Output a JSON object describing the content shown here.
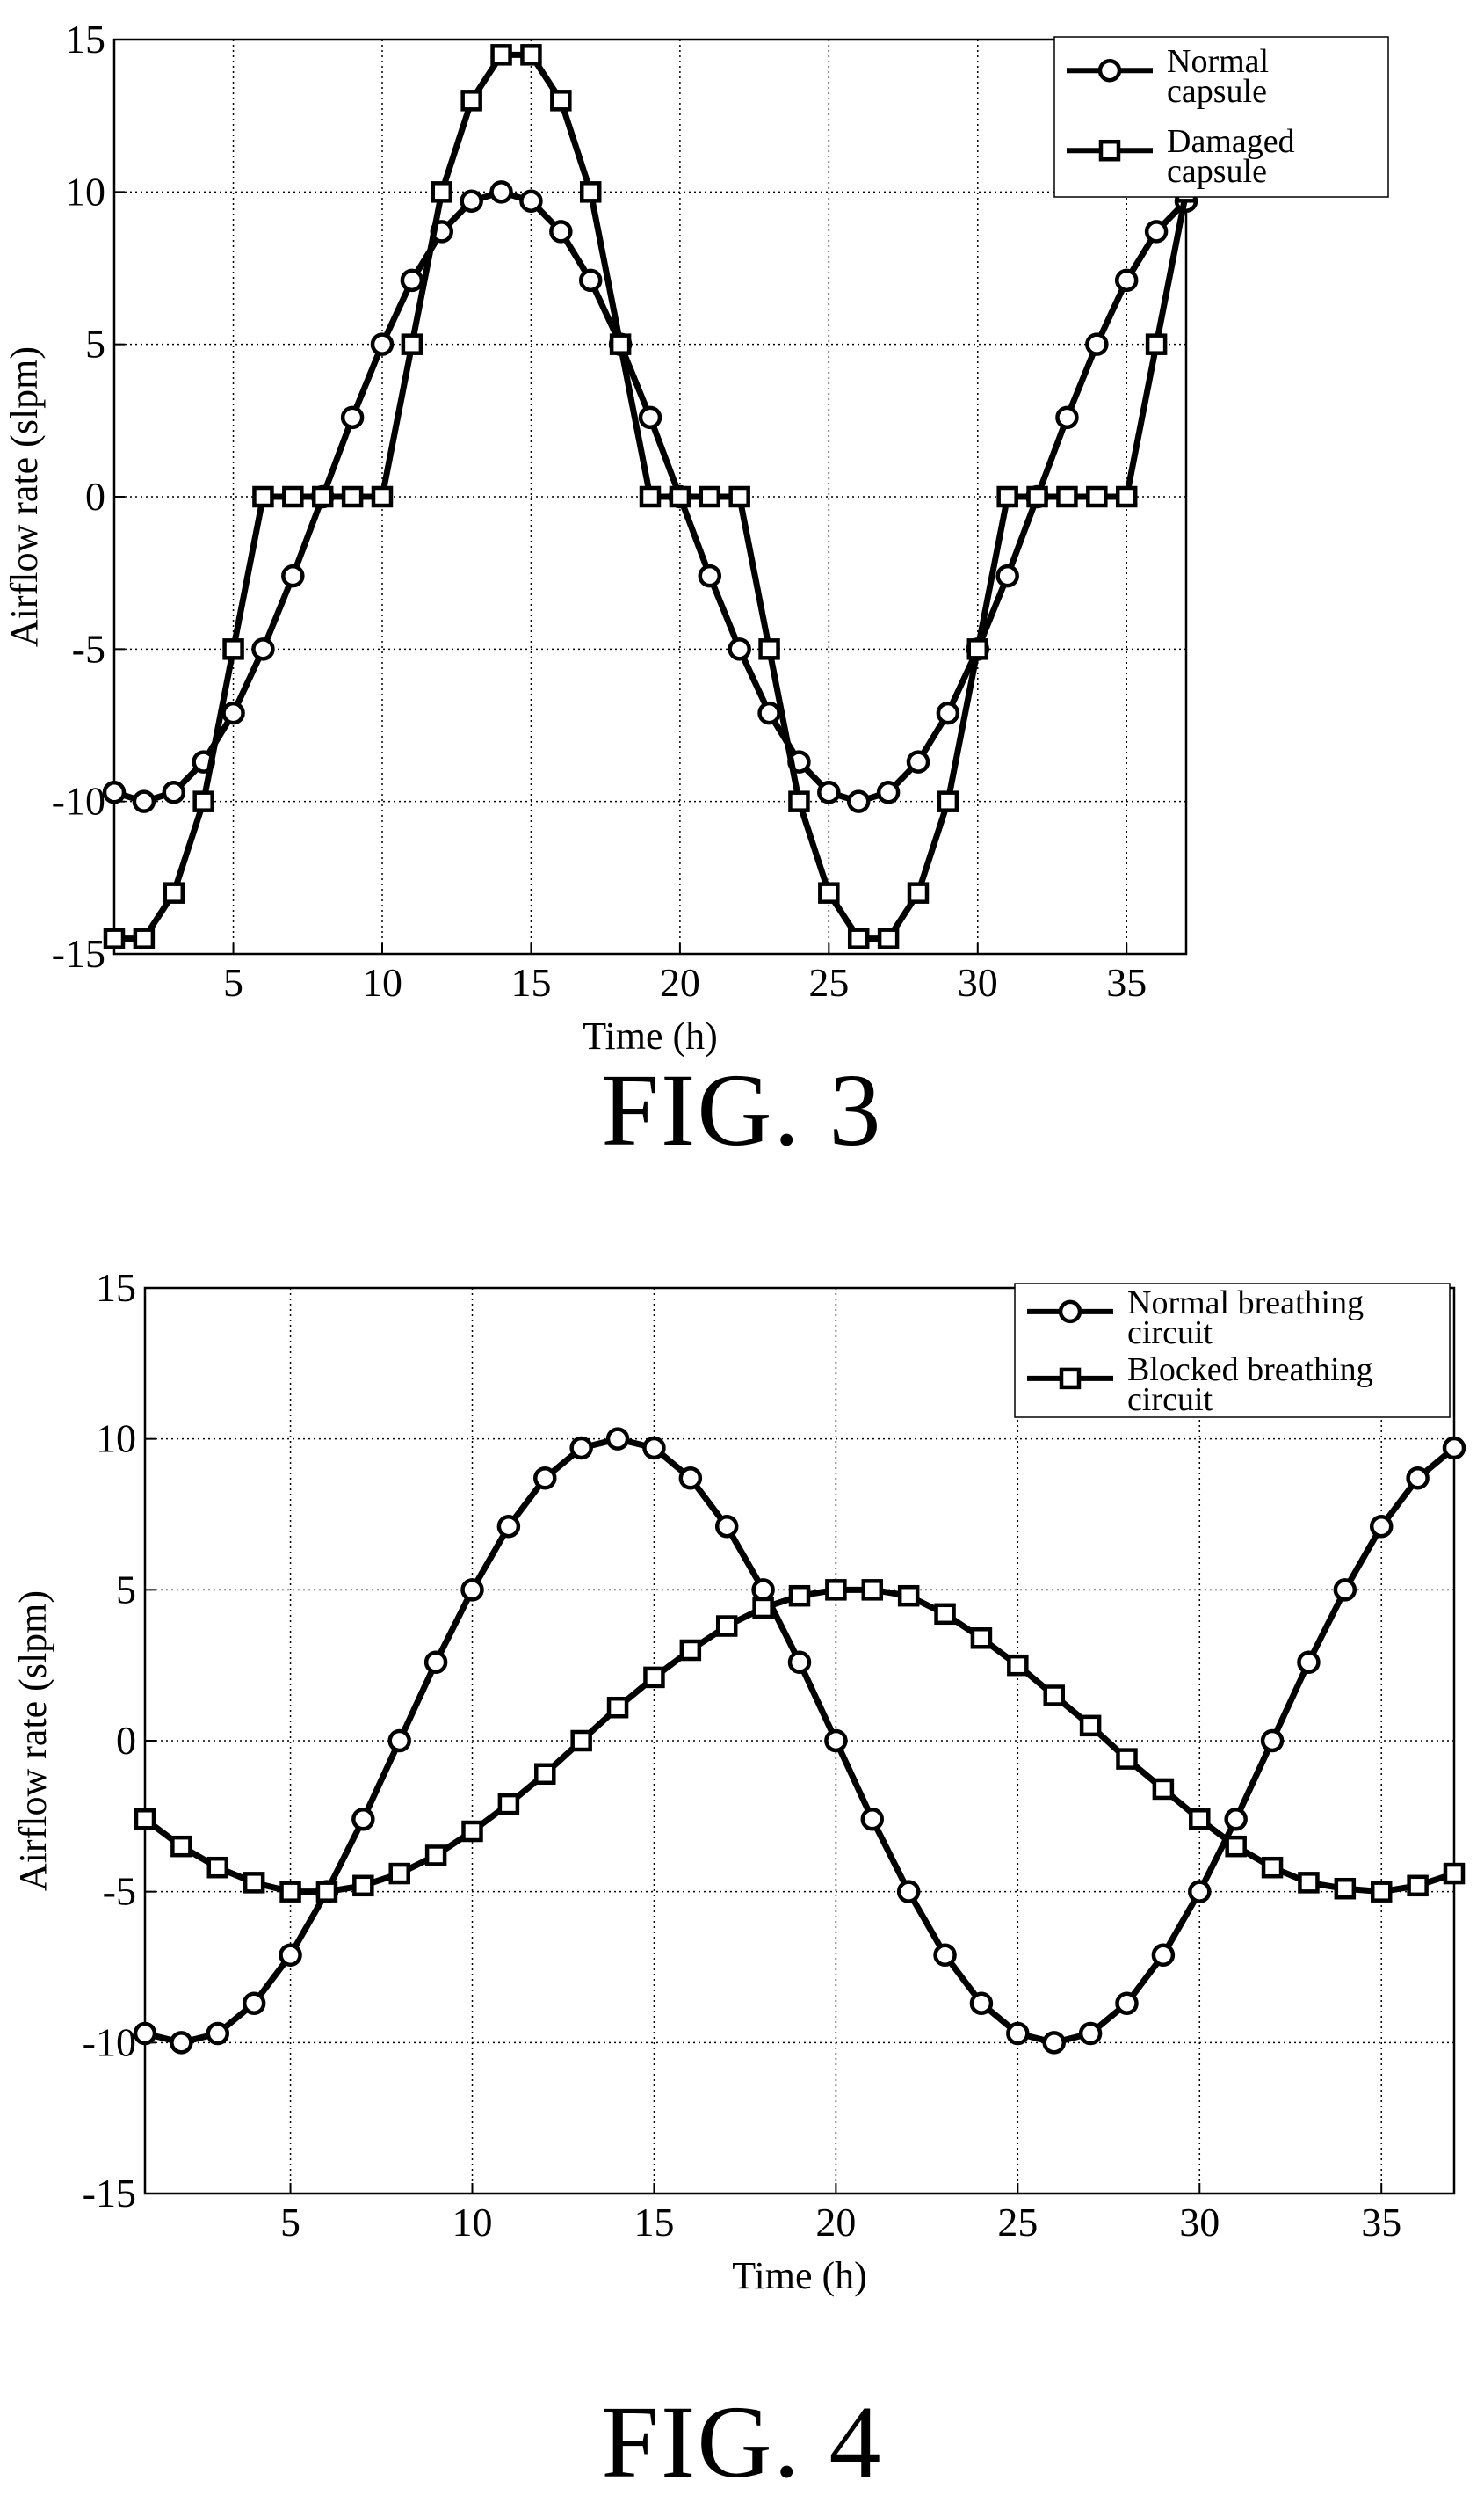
{
  "figures": [
    {
      "caption": "FIG. 3",
      "chart_data": {
        "type": "line",
        "title": "",
        "xlabel": "Time (h)",
        "ylabel": "Airflow rate (slpm)",
        "xlim": [
          1,
          37
        ],
        "ylim": [
          -15,
          15
        ],
        "xticks": [
          5,
          10,
          15,
          20,
          25,
          30,
          35
        ],
        "yticks": [
          15,
          10,
          5,
          0,
          -5,
          -10,
          -15
        ],
        "grid": true,
        "legend_position": "top-right",
        "x": [
          1,
          2,
          3,
          4,
          5,
          6,
          7,
          8,
          9,
          10,
          11,
          12,
          13,
          14,
          15,
          16,
          17,
          18,
          19,
          20,
          21,
          22,
          23,
          24,
          25,
          26,
          27,
          28,
          29,
          30,
          31,
          32,
          33,
          34,
          35,
          36,
          37
        ],
        "series": [
          {
            "name": "Normal capsule",
            "marker": "circle",
            "values": [
              -9.7,
              -10,
              -9.7,
              -8.7,
              -7.1,
              -5,
              -2.6,
              0,
              2.6,
              5,
              7.1,
              8.7,
              9.7,
              10,
              9.7,
              8.7,
              7.1,
              5,
              2.6,
              0,
              -2.6,
              -5,
              -7.1,
              -8.7,
              -9.7,
              -10,
              -9.7,
              -8.7,
              -7.1,
              -5,
              -2.6,
              0,
              2.6,
              5,
              7.1,
              8.7,
              9.7
            ]
          },
          {
            "name": "Damaged capsule",
            "marker": "square",
            "values": [
              -14.5,
              -14.5,
              -13,
              -10,
              -5,
              0,
              0,
              0,
              0,
              0,
              5,
              10,
              13,
              14.5,
              14.5,
              13,
              10,
              5,
              0,
              0,
              0,
              0,
              -5,
              -10,
              -13,
              -14.5,
              -14.5,
              -13,
              -10,
              -5,
              0,
              0,
              0,
              0,
              0,
              5,
              10
            ]
          }
        ]
      }
    },
    {
      "caption": "FIG. 4",
      "chart_data": {
        "type": "line",
        "title": "",
        "xlabel": "Time (h)",
        "ylabel": "Airflow rate (slpm)",
        "xlim": [
          1,
          37
        ],
        "ylim": [
          -15,
          15
        ],
        "xticks": [
          5,
          10,
          15,
          20,
          25,
          30,
          35
        ],
        "yticks": [
          15,
          10,
          5,
          0,
          -5,
          -10,
          -15
        ],
        "grid": true,
        "legend_position": "top-right",
        "x": [
          1,
          2,
          3,
          4,
          5,
          6,
          7,
          8,
          9,
          10,
          11,
          12,
          13,
          14,
          15,
          16,
          17,
          18,
          19,
          20,
          21,
          22,
          23,
          24,
          25,
          26,
          27,
          28,
          29,
          30,
          31,
          32,
          33,
          34,
          35,
          36,
          37
        ],
        "series": [
          {
            "name": "Normal breathing circuit",
            "marker": "circle",
            "values": [
              -9.7,
              -10,
              -9.7,
              -8.7,
              -7.1,
              -5,
              -2.6,
              0,
              2.6,
              5,
              7.1,
              8.7,
              9.7,
              10,
              9.7,
              8.7,
              7.1,
              5,
              2.6,
              0,
              -2.6,
              -5,
              -7.1,
              -8.7,
              -9.7,
              -10,
              -9.7,
              -8.7,
              -7.1,
              -5,
              -2.6,
              0,
              2.6,
              5,
              7.1,
              8.7,
              9.7
            ]
          },
          {
            "name": "Blocked breathing circuit",
            "marker": "square",
            "values": [
              -2.6,
              -3.5,
              -4.2,
              -4.7,
              -5,
              -5,
              -4.8,
              -4.4,
              -3.8,
              -3,
              -2.1,
              -1.1,
              0,
              1.1,
              2.1,
              3,
              3.8,
              4.4,
              4.8,
              5,
              5,
              4.8,
              4.2,
              3.4,
              2.5,
              1.5,
              0.5,
              -0.6,
              -1.6,
              -2.6,
              -3.5,
              -4.2,
              -4.7,
              -4.9,
              -5,
              -4.8,
              -4.4
            ]
          }
        ]
      }
    }
  ]
}
